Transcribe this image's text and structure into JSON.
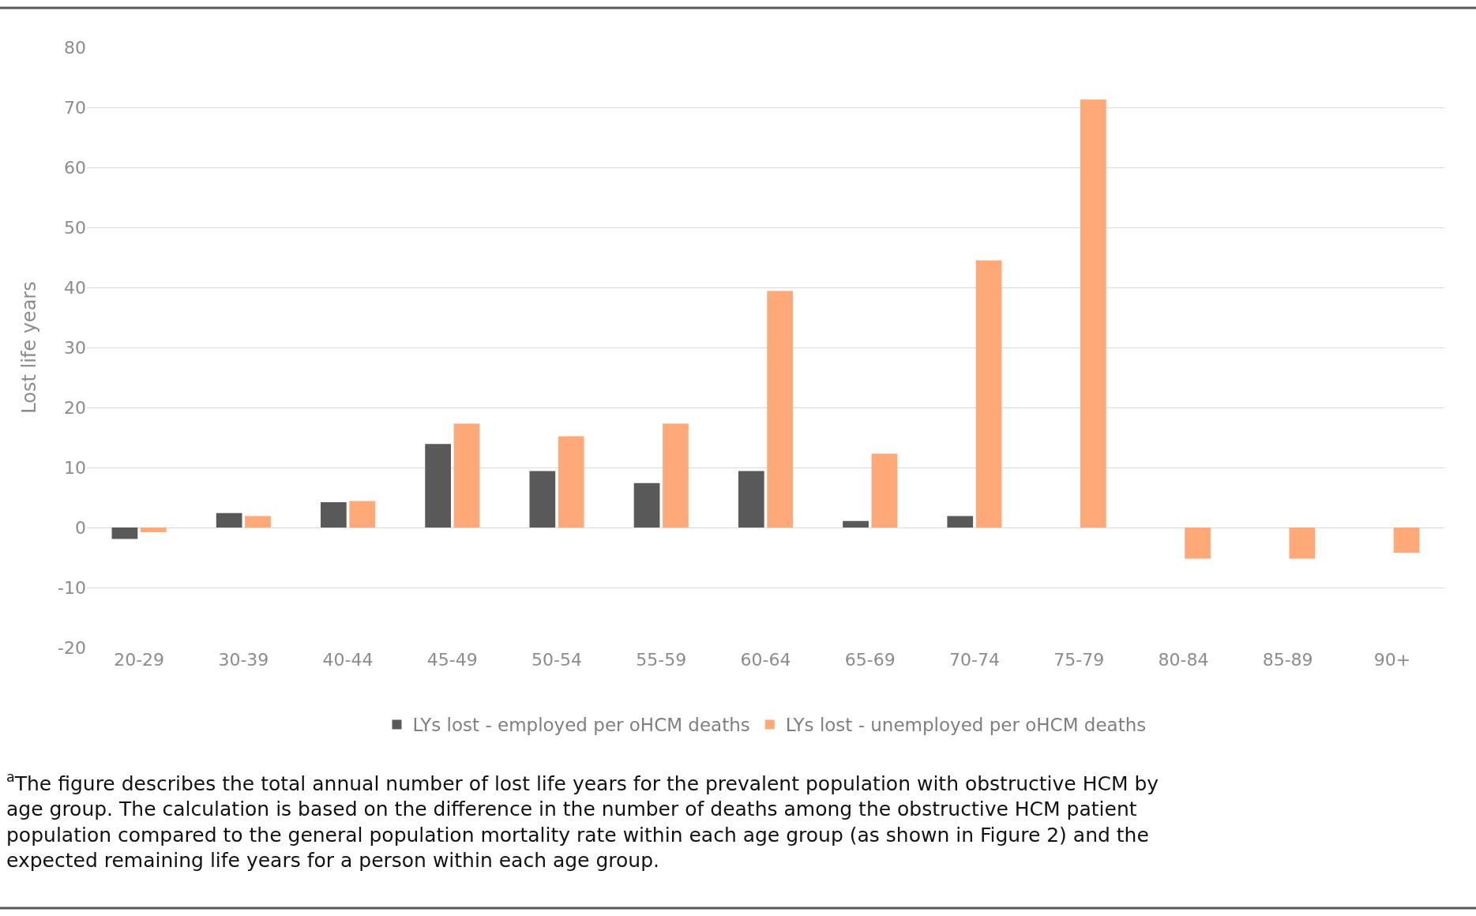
{
  "chart_data": {
    "type": "bar",
    "ylabel": "Lost life years",
    "categories": [
      "20-29",
      "30-39",
      "40-44",
      "45-49",
      "50-54",
      "55-59",
      "60-64",
      "65-69",
      "70-74",
      "75-79",
      "80-84",
      "85-89",
      "90+"
    ],
    "series": [
      {
        "name": "LYs lost - employed per oHCM deaths",
        "color": "#595959",
        "values": [
          -1.9,
          2.4,
          4.2,
          13.9,
          9.4,
          7.4,
          9.4,
          1.1,
          1.9,
          null,
          null,
          null,
          null
        ]
      },
      {
        "name": "LYs lost - unemployed per oHCM deaths",
        "color": "#ffa878",
        "values": [
          -0.8,
          1.9,
          4.4,
          17.3,
          15.2,
          17.3,
          39.4,
          12.3,
          44.5,
          71.3,
          -5.2,
          -5.2,
          -4.2
        ]
      }
    ],
    "ylim": [
      -20,
      80
    ],
    "yticks": [
      -20,
      -10,
      0,
      10,
      20,
      30,
      40,
      50,
      60,
      70,
      80
    ],
    "grid": "y",
    "legend": "bottom",
    "annotations": [
      "$^{a}$The figure describes the total annual number of lost life years for the prevalent population with obstructive HCM by age group. The calculation is based on the difference in the number of deaths among the obstructive HCM patient population compared to the general population mortality rate within each age group (as shown in Figure 2) and the expected remaining life years for a person within each age group."
    ]
  }
}
